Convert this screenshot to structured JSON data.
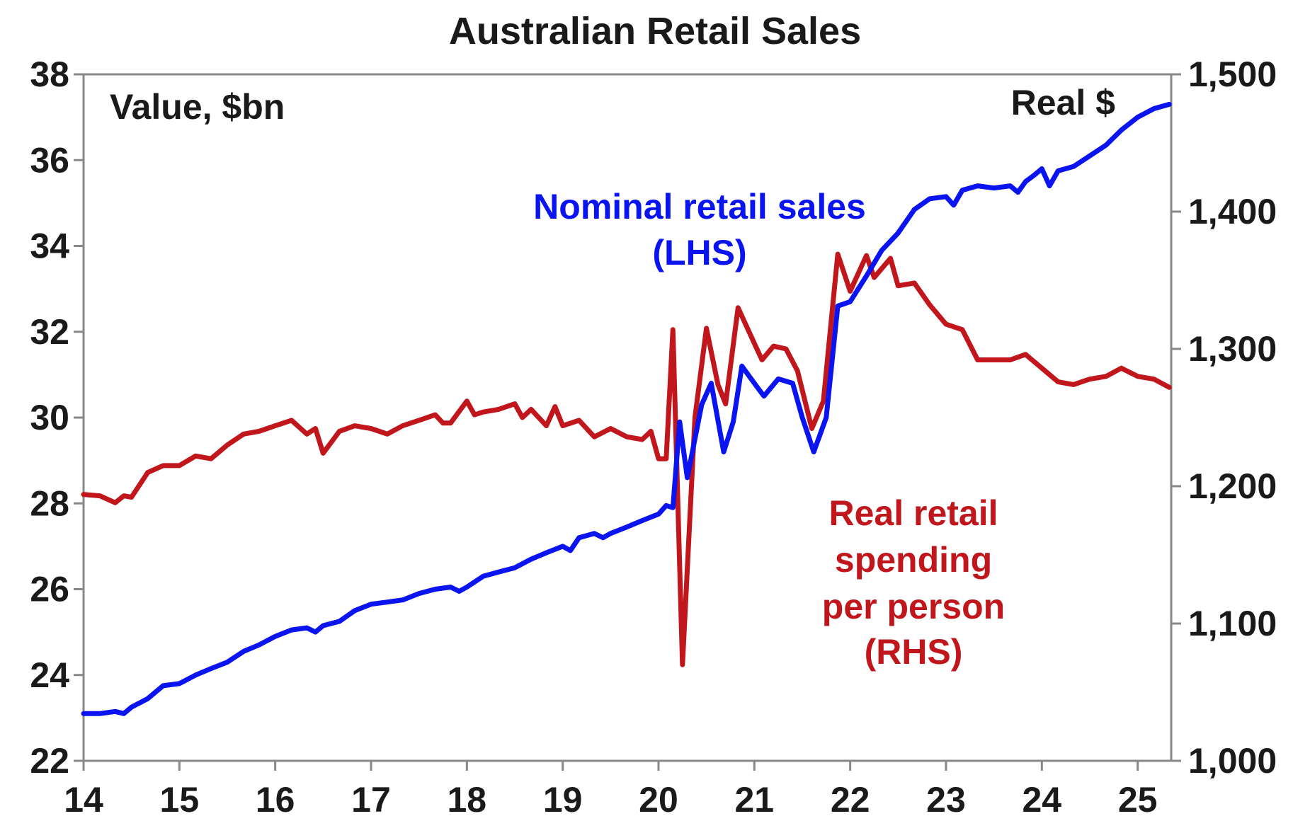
{
  "chart_data": {
    "type": "line",
    "title": "Australian Retail Sales",
    "left_axis": {
      "label": "Value, $bn",
      "range": [
        22,
        38
      ],
      "ticks": [
        "22",
        "24",
        "26",
        "28",
        "30",
        "32",
        "34",
        "36",
        "38"
      ]
    },
    "right_axis": {
      "label": "Real $",
      "range": [
        1000,
        1500
      ],
      "ticks": [
        "1,000",
        "1,100",
        "1,200",
        "1,300",
        "1,400",
        "1,500"
      ]
    },
    "x_axis": {
      "range": [
        14,
        25.35
      ],
      "ticks": [
        "14",
        "15",
        "16",
        "17",
        "18",
        "19",
        "20",
        "21",
        "22",
        "23",
        "24",
        "25"
      ]
    },
    "grid": false,
    "series": [
      {
        "name": "Nominal retail sales (LHS)",
        "axis": "left",
        "color": "#0a14f0",
        "label_lines": [
          "Nominal retail sales",
          "(LHS)"
        ],
        "points": [
          [
            14.0,
            23.1
          ],
          [
            14.17,
            23.1
          ],
          [
            14.33,
            23.15
          ],
          [
            14.42,
            23.1
          ],
          [
            14.5,
            23.25
          ],
          [
            14.67,
            23.45
          ],
          [
            14.83,
            23.75
          ],
          [
            15.0,
            23.8
          ],
          [
            15.17,
            24.0
          ],
          [
            15.33,
            24.15
          ],
          [
            15.5,
            24.3
          ],
          [
            15.67,
            24.55
          ],
          [
            15.83,
            24.7
          ],
          [
            16.0,
            24.9
          ],
          [
            16.17,
            25.05
          ],
          [
            16.33,
            25.1
          ],
          [
            16.42,
            25.0
          ],
          [
            16.5,
            25.15
          ],
          [
            16.67,
            25.25
          ],
          [
            16.83,
            25.5
          ],
          [
            17.0,
            25.65
          ],
          [
            17.17,
            25.7
          ],
          [
            17.33,
            25.75
          ],
          [
            17.5,
            25.9
          ],
          [
            17.67,
            26.0
          ],
          [
            17.83,
            26.05
          ],
          [
            17.92,
            25.95
          ],
          [
            18.0,
            26.05
          ],
          [
            18.17,
            26.3
          ],
          [
            18.33,
            26.4
          ],
          [
            18.5,
            26.5
          ],
          [
            18.67,
            26.7
          ],
          [
            18.83,
            26.85
          ],
          [
            19.0,
            27.0
          ],
          [
            19.08,
            26.9
          ],
          [
            19.17,
            27.2
          ],
          [
            19.33,
            27.3
          ],
          [
            19.42,
            27.2
          ],
          [
            19.5,
            27.3
          ],
          [
            19.67,
            27.45
          ],
          [
            19.83,
            27.6
          ],
          [
            20.0,
            27.75
          ],
          [
            20.08,
            27.95
          ],
          [
            20.15,
            27.9
          ],
          [
            20.22,
            29.9
          ],
          [
            20.3,
            28.6
          ],
          [
            20.45,
            30.3
          ],
          [
            20.55,
            30.8
          ],
          [
            20.68,
            29.2
          ],
          [
            20.78,
            29.9
          ],
          [
            20.87,
            31.2
          ],
          [
            21.0,
            30.8
          ],
          [
            21.1,
            30.5
          ],
          [
            21.25,
            30.9
          ],
          [
            21.4,
            30.8
          ],
          [
            21.5,
            30.0
          ],
          [
            21.62,
            29.2
          ],
          [
            21.75,
            30.0
          ],
          [
            21.87,
            32.6
          ],
          [
            22.0,
            32.7
          ],
          [
            22.17,
            33.3
          ],
          [
            22.33,
            33.9
          ],
          [
            22.5,
            34.3
          ],
          [
            22.67,
            34.85
          ],
          [
            22.83,
            35.1
          ],
          [
            23.0,
            35.15
          ],
          [
            23.08,
            34.95
          ],
          [
            23.17,
            35.3
          ],
          [
            23.33,
            35.4
          ],
          [
            23.5,
            35.35
          ],
          [
            23.67,
            35.4
          ],
          [
            23.75,
            35.25
          ],
          [
            23.83,
            35.5
          ],
          [
            23.92,
            35.65
          ],
          [
            24.0,
            35.8
          ],
          [
            24.08,
            35.4
          ],
          [
            24.17,
            35.75
          ],
          [
            24.33,
            35.85
          ],
          [
            24.5,
            36.1
          ],
          [
            24.67,
            36.35
          ],
          [
            24.83,
            36.7
          ],
          [
            25.0,
            37.0
          ],
          [
            25.17,
            37.2
          ],
          [
            25.33,
            37.3
          ]
        ]
      },
      {
        "name": "Real retail spending per person (RHS)",
        "axis": "right",
        "color": "#c0161c",
        "label_lines": [
          "Real retail",
          "spending",
          "per person",
          "(RHS)"
        ],
        "points": [
          [
            14.0,
            1194
          ],
          [
            14.17,
            1193
          ],
          [
            14.33,
            1188
          ],
          [
            14.42,
            1193
          ],
          [
            14.5,
            1192
          ],
          [
            14.67,
            1210
          ],
          [
            14.83,
            1215
          ],
          [
            15.0,
            1215
          ],
          [
            15.17,
            1222
          ],
          [
            15.33,
            1220
          ],
          [
            15.5,
            1230
          ],
          [
            15.67,
            1238
          ],
          [
            15.83,
            1240
          ],
          [
            16.0,
            1244
          ],
          [
            16.17,
            1248
          ],
          [
            16.33,
            1238
          ],
          [
            16.42,
            1242
          ],
          [
            16.5,
            1224
          ],
          [
            16.67,
            1240
          ],
          [
            16.83,
            1244
          ],
          [
            17.0,
            1242
          ],
          [
            17.17,
            1238
          ],
          [
            17.33,
            1244
          ],
          [
            17.5,
            1248
          ],
          [
            17.67,
            1252
          ],
          [
            17.75,
            1246
          ],
          [
            17.83,
            1246
          ],
          [
            18.0,
            1262
          ],
          [
            18.08,
            1252
          ],
          [
            18.17,
            1254
          ],
          [
            18.33,
            1256
          ],
          [
            18.5,
            1260
          ],
          [
            18.58,
            1250
          ],
          [
            18.67,
            1256
          ],
          [
            18.83,
            1244
          ],
          [
            18.92,
            1258
          ],
          [
            19.0,
            1244
          ],
          [
            19.17,
            1248
          ],
          [
            19.33,
            1236
          ],
          [
            19.5,
            1242
          ],
          [
            19.67,
            1236
          ],
          [
            19.83,
            1234
          ],
          [
            19.92,
            1240
          ],
          [
            20.0,
            1220
          ],
          [
            20.08,
            1220
          ],
          [
            20.15,
            1314
          ],
          [
            20.25,
            1070
          ],
          [
            20.38,
            1250
          ],
          [
            20.5,
            1315
          ],
          [
            20.62,
            1274
          ],
          [
            20.7,
            1260
          ],
          [
            20.83,
            1330
          ],
          [
            21.0,
            1304
          ],
          [
            21.08,
            1292
          ],
          [
            21.2,
            1302
          ],
          [
            21.33,
            1300
          ],
          [
            21.45,
            1284
          ],
          [
            21.6,
            1242
          ],
          [
            21.72,
            1262
          ],
          [
            21.87,
            1369
          ],
          [
            22.0,
            1342
          ],
          [
            22.17,
            1368
          ],
          [
            22.25,
            1352
          ],
          [
            22.42,
            1366
          ],
          [
            22.5,
            1346
          ],
          [
            22.67,
            1348
          ],
          [
            22.83,
            1332
          ],
          [
            23.0,
            1318
          ],
          [
            23.17,
            1314
          ],
          [
            23.33,
            1292
          ],
          [
            23.5,
            1292
          ],
          [
            23.67,
            1292
          ],
          [
            23.83,
            1296
          ],
          [
            24.0,
            1286
          ],
          [
            24.17,
            1276
          ],
          [
            24.33,
            1274
          ],
          [
            24.5,
            1278
          ],
          [
            24.67,
            1280
          ],
          [
            24.83,
            1286
          ],
          [
            25.0,
            1280
          ],
          [
            25.17,
            1278
          ],
          [
            25.33,
            1272
          ]
        ]
      }
    ]
  }
}
